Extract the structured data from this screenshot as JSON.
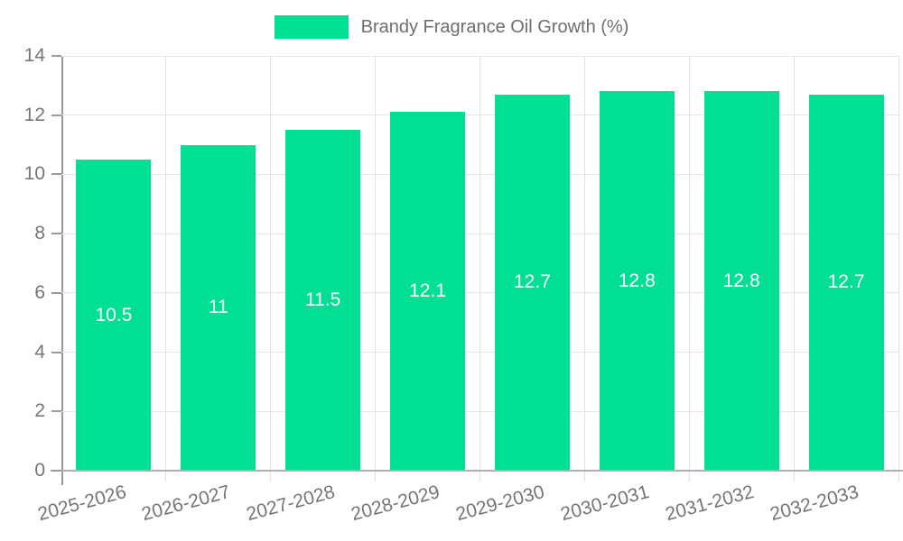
{
  "chart_data": {
    "type": "bar",
    "title": "Brandy Fragrance Oil Growth (%)",
    "categories": [
      "2025-2026",
      "2026-2027",
      "2027-2028",
      "2028-2029",
      "2029-2030",
      "2030-2031",
      "2031-2032",
      "2032-2033"
    ],
    "values": [
      10.5,
      11,
      11.5,
      12.1,
      12.7,
      12.8,
      12.8,
      12.7
    ],
    "value_labels": [
      "10.5",
      "11",
      "11.5",
      "12.1",
      "12.7",
      "12.8",
      "12.8",
      "12.7"
    ],
    "xlabel": "",
    "ylabel": "",
    "ylim": [
      0,
      14
    ],
    "yticks": [
      0,
      2,
      4,
      6,
      8,
      10,
      12,
      14
    ],
    "grid": true,
    "legend_position": "top",
    "colors": {
      "bar": "#00df94",
      "bar_label": "#ffffff",
      "axis_text": "#757575",
      "legend_text": "#6e6e6e",
      "gridline": "#e6e6e6",
      "axis_line": "#9a9a9a"
    }
  }
}
